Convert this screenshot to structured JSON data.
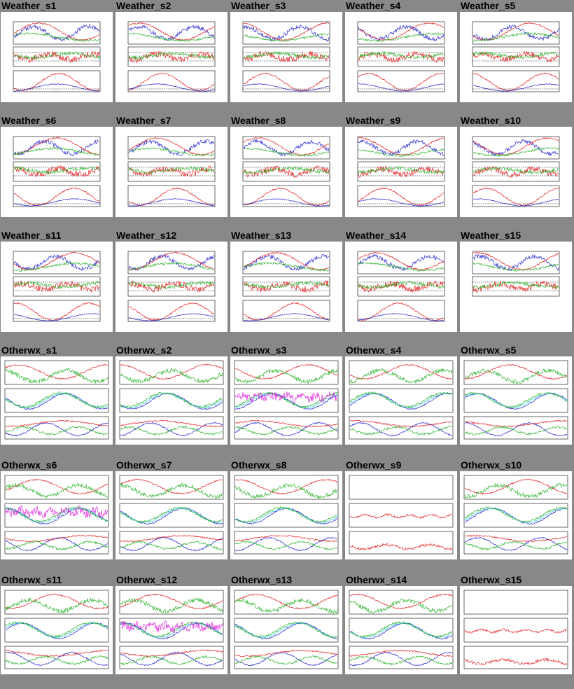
{
  "colors": {
    "background": "#888888",
    "red": "#e41a1c",
    "green": "#22b022",
    "blue": "#1f1fd0",
    "cyan": "#3fd0e0",
    "magenta": "#e020e0",
    "black": "#000000"
  },
  "weather_rows": [
    [
      "Weather_s1",
      "Weather_s2",
      "Weather_s3",
      "Weather_s4",
      "Weather_s5"
    ],
    [
      "Weather_s6",
      "Weather_s7",
      "Weather_s8",
      "Weather_s9",
      "Weather_s10"
    ],
    [
      "Weather_s11",
      "Weather_s12",
      "Weather_s13",
      "Weather_s14",
      "Weather_s15"
    ]
  ],
  "otherwx_rows": [
    [
      "Otherwx_s1",
      "Otherwx_s2",
      "Otherwx_s3",
      "Otherwx_s4",
      "Otherwx_s5"
    ],
    [
      "Otherwx_s6",
      "Otherwx_s7",
      "Otherwx_s8",
      "Otherwx_s9",
      "Otherwx_s10"
    ],
    [
      "Otherwx_s11",
      "Otherwx_s12",
      "Otherwx_s13",
      "Otherwx_s14",
      "Otherwx_s15"
    ]
  ]
}
